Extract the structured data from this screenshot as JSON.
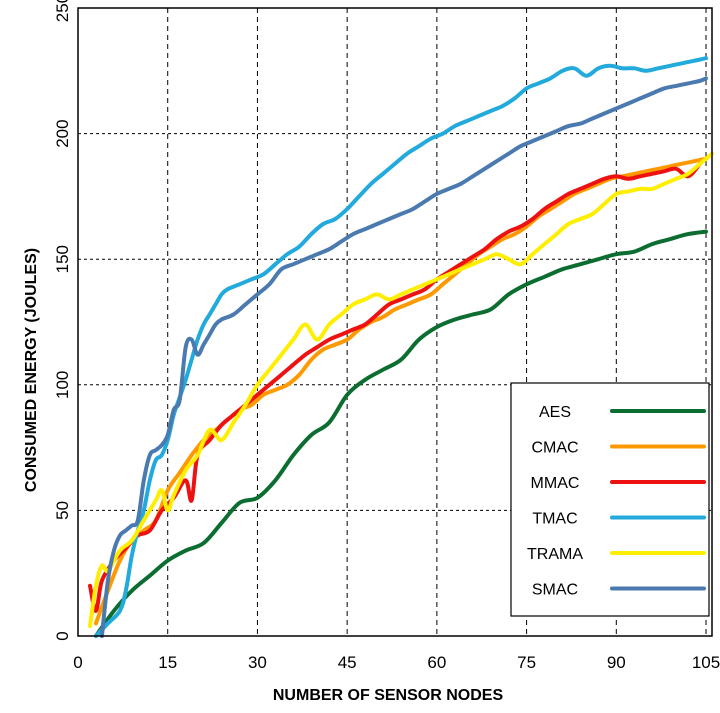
{
  "chart_data": {
    "type": "line",
    "title": "",
    "xlabel": "NUMBER OF SENSOR NODES",
    "ylabel": "CONSUMED ENERGY (JOULES)",
    "xlim": [
      0,
      106
    ],
    "ylim": [
      0,
      250
    ],
    "xticks": [
      0,
      15,
      30,
      45,
      60,
      75,
      90,
      105
    ],
    "yticks": [
      0,
      50,
      100,
      150,
      200,
      250
    ],
    "grid": true,
    "legend_position": "bottom-right",
    "series": [
      {
        "name": "AES",
        "color": "#0b6e30",
        "points": [
          [
            3,
            0
          ],
          [
            6,
            10
          ],
          [
            9,
            18
          ],
          [
            12,
            24
          ],
          [
            15,
            30
          ],
          [
            18,
            34
          ],
          [
            21,
            37
          ],
          [
            24,
            45
          ],
          [
            27,
            53
          ],
          [
            30,
            55
          ],
          [
            33,
            62
          ],
          [
            36,
            72
          ],
          [
            39,
            80
          ],
          [
            42,
            85
          ],
          [
            45,
            96
          ],
          [
            48,
            102
          ],
          [
            51,
            106
          ],
          [
            54,
            110
          ],
          [
            57,
            118
          ],
          [
            60,
            123
          ],
          [
            63,
            126
          ],
          [
            66,
            128
          ],
          [
            69,
            130
          ],
          [
            72,
            136
          ],
          [
            75,
            140
          ],
          [
            78,
            143
          ],
          [
            81,
            146
          ],
          [
            84,
            148
          ],
          [
            87,
            150
          ],
          [
            90,
            152
          ],
          [
            93,
            153
          ],
          [
            96,
            156
          ],
          [
            99,
            158
          ],
          [
            102,
            160
          ],
          [
            105,
            161
          ]
        ]
      },
      {
        "name": "CMAC",
        "color": "#ff9900",
        "points": [
          [
            3,
            5
          ],
          [
            5,
            18
          ],
          [
            7,
            30
          ],
          [
            9,
            38
          ],
          [
            11,
            42
          ],
          [
            13,
            46
          ],
          [
            15,
            58
          ],
          [
            17,
            65
          ],
          [
            19,
            72
          ],
          [
            21,
            78
          ],
          [
            23,
            82
          ],
          [
            25,
            86
          ],
          [
            27,
            90
          ],
          [
            29,
            92
          ],
          [
            31,
            96
          ],
          [
            33,
            98
          ],
          [
            35,
            100
          ],
          [
            37,
            104
          ],
          [
            39,
            110
          ],
          [
            41,
            114
          ],
          [
            43,
            116
          ],
          [
            45,
            118
          ],
          [
            47,
            122
          ],
          [
            49,
            125
          ],
          [
            51,
            127
          ],
          [
            53,
            130
          ],
          [
            55,
            132
          ],
          [
            57,
            134
          ],
          [
            59,
            136
          ],
          [
            61,
            140
          ],
          [
            63,
            144
          ],
          [
            65,
            148
          ],
          [
            67,
            152
          ],
          [
            69,
            155
          ],
          [
            71,
            158
          ],
          [
            73,
            160
          ],
          [
            75,
            163
          ],
          [
            77,
            167
          ],
          [
            79,
            170
          ],
          [
            81,
            173
          ],
          [
            83,
            176
          ],
          [
            85,
            178
          ],
          [
            87,
            180
          ],
          [
            89,
            182
          ],
          [
            91,
            183
          ],
          [
            93,
            184
          ],
          [
            95,
            185
          ],
          [
            97,
            186
          ],
          [
            99,
            187
          ],
          [
            101,
            188
          ],
          [
            103,
            189
          ],
          [
            105,
            190
          ]
        ]
      },
      {
        "name": "MMAC",
        "color": "#ee1111",
        "points": [
          [
            2,
            20
          ],
          [
            3,
            10
          ],
          [
            4,
            22
          ],
          [
            6,
            30
          ],
          [
            8,
            35
          ],
          [
            10,
            40
          ],
          [
            12,
            42
          ],
          [
            14,
            50
          ],
          [
            16,
            55
          ],
          [
            18,
            62
          ],
          [
            19,
            54
          ],
          [
            20,
            72
          ],
          [
            22,
            78
          ],
          [
            24,
            84
          ],
          [
            26,
            88
          ],
          [
            28,
            92
          ],
          [
            30,
            96
          ],
          [
            32,
            100
          ],
          [
            34,
            104
          ],
          [
            36,
            108
          ],
          [
            38,
            112
          ],
          [
            40,
            115
          ],
          [
            42,
            118
          ],
          [
            44,
            120
          ],
          [
            46,
            122
          ],
          [
            48,
            124
          ],
          [
            50,
            128
          ],
          [
            52,
            132
          ],
          [
            54,
            134
          ],
          [
            56,
            136
          ],
          [
            58,
            138
          ],
          [
            60,
            142
          ],
          [
            62,
            145
          ],
          [
            64,
            148
          ],
          [
            66,
            151
          ],
          [
            68,
            154
          ],
          [
            70,
            158
          ],
          [
            72,
            161
          ],
          [
            74,
            163
          ],
          [
            76,
            166
          ],
          [
            78,
            170
          ],
          [
            80,
            173
          ],
          [
            82,
            176
          ],
          [
            84,
            178
          ],
          [
            86,
            180
          ],
          [
            88,
            182
          ],
          [
            90,
            183
          ],
          [
            92,
            182
          ],
          [
            94,
            183
          ],
          [
            96,
            184
          ],
          [
            98,
            185
          ],
          [
            100,
            186
          ],
          [
            102,
            183
          ],
          [
            104,
            188
          ]
        ]
      },
      {
        "name": "TMAC",
        "color": "#22aadd",
        "points": [
          [
            3,
            0
          ],
          [
            5,
            5
          ],
          [
            7,
            10
          ],
          [
            8,
            18
          ],
          [
            9,
            32
          ],
          [
            10,
            42
          ],
          [
            11,
            50
          ],
          [
            12,
            62
          ],
          [
            13,
            70
          ],
          [
            14,
            72
          ],
          [
            15,
            78
          ],
          [
            16,
            88
          ],
          [
            17,
            95
          ],
          [
            18,
            102
          ],
          [
            19,
            110
          ],
          [
            20,
            118
          ],
          [
            21,
            124
          ],
          [
            22,
            128
          ],
          [
            23,
            132
          ],
          [
            24,
            136
          ],
          [
            25,
            138
          ],
          [
            27,
            140
          ],
          [
            29,
            142
          ],
          [
            31,
            144
          ],
          [
            33,
            148
          ],
          [
            35,
            152
          ],
          [
            37,
            155
          ],
          [
            39,
            160
          ],
          [
            41,
            164
          ],
          [
            43,
            166
          ],
          [
            45,
            170
          ],
          [
            47,
            175
          ],
          [
            49,
            180
          ],
          [
            51,
            184
          ],
          [
            53,
            188
          ],
          [
            55,
            192
          ],
          [
            57,
            195
          ],
          [
            59,
            198
          ],
          [
            61,
            200
          ],
          [
            63,
            203
          ],
          [
            65,
            205
          ],
          [
            67,
            207
          ],
          [
            69,
            209
          ],
          [
            71,
            211
          ],
          [
            73,
            214
          ],
          [
            75,
            218
          ],
          [
            77,
            220
          ],
          [
            79,
            222
          ],
          [
            81,
            225
          ],
          [
            83,
            226
          ],
          [
            85,
            223
          ],
          [
            87,
            226
          ],
          [
            89,
            227
          ],
          [
            91,
            226
          ],
          [
            93,
            226
          ],
          [
            95,
            225
          ],
          [
            97,
            226
          ],
          [
            99,
            227
          ],
          [
            101,
            228
          ],
          [
            103,
            229
          ],
          [
            105,
            230
          ]
        ]
      },
      {
        "name": "TRAMA",
        "color": "#ffee00",
        "points": [
          [
            2,
            4
          ],
          [
            3,
            20
          ],
          [
            4,
            28
          ],
          [
            5,
            26
          ],
          [
            7,
            34
          ],
          [
            9,
            38
          ],
          [
            11,
            46
          ],
          [
            13,
            54
          ],
          [
            14,
            58
          ],
          [
            15,
            50
          ],
          [
            16,
            56
          ],
          [
            18,
            66
          ],
          [
            20,
            72
          ],
          [
            22,
            82
          ],
          [
            24,
            78
          ],
          [
            26,
            85
          ],
          [
            28,
            92
          ],
          [
            30,
            100
          ],
          [
            32,
            106
          ],
          [
            34,
            112
          ],
          [
            36,
            118
          ],
          [
            38,
            124
          ],
          [
            40,
            118
          ],
          [
            42,
            124
          ],
          [
            44,
            128
          ],
          [
            46,
            132
          ],
          [
            48,
            134
          ],
          [
            50,
            136
          ],
          [
            52,
            134
          ],
          [
            54,
            136
          ],
          [
            56,
            138
          ],
          [
            58,
            140
          ],
          [
            60,
            142
          ],
          [
            62,
            144
          ],
          [
            64,
            146
          ],
          [
            66,
            148
          ],
          [
            68,
            150
          ],
          [
            70,
            152
          ],
          [
            72,
            150
          ],
          [
            74,
            148
          ],
          [
            76,
            152
          ],
          [
            78,
            156
          ],
          [
            80,
            160
          ],
          [
            82,
            164
          ],
          [
            84,
            166
          ],
          [
            86,
            168
          ],
          [
            88,
            172
          ],
          [
            90,
            176
          ],
          [
            92,
            177
          ],
          [
            94,
            178
          ],
          [
            96,
            178
          ],
          [
            98,
            180
          ],
          [
            100,
            182
          ],
          [
            102,
            184
          ],
          [
            104,
            188
          ],
          [
            106,
            192
          ]
        ]
      },
      {
        "name": "SMAC",
        "color": "#4a7ab0",
        "points": [
          [
            4,
            0
          ],
          [
            5,
            22
          ],
          [
            6,
            34
          ],
          [
            7,
            40
          ],
          [
            8,
            42
          ],
          [
            9,
            44
          ],
          [
            10,
            46
          ],
          [
            11,
            62
          ],
          [
            12,
            72
          ],
          [
            13,
            74
          ],
          [
            14,
            76
          ],
          [
            15,
            80
          ],
          [
            16,
            90
          ],
          [
            17,
            94
          ],
          [
            18,
            115
          ],
          [
            19,
            118
          ],
          [
            20,
            112
          ],
          [
            21,
            116
          ],
          [
            22,
            120
          ],
          [
            23,
            124
          ],
          [
            24,
            126
          ],
          [
            26,
            128
          ],
          [
            28,
            132
          ],
          [
            30,
            136
          ],
          [
            32,
            140
          ],
          [
            34,
            146
          ],
          [
            36,
            148
          ],
          [
            38,
            150
          ],
          [
            40,
            152
          ],
          [
            42,
            154
          ],
          [
            44,
            157
          ],
          [
            46,
            160
          ],
          [
            48,
            162
          ],
          [
            50,
            164
          ],
          [
            52,
            166
          ],
          [
            54,
            168
          ],
          [
            56,
            170
          ],
          [
            58,
            173
          ],
          [
            60,
            176
          ],
          [
            62,
            178
          ],
          [
            64,
            180
          ],
          [
            66,
            183
          ],
          [
            68,
            186
          ],
          [
            70,
            189
          ],
          [
            72,
            192
          ],
          [
            74,
            195
          ],
          [
            76,
            197
          ],
          [
            78,
            199
          ],
          [
            80,
            201
          ],
          [
            82,
            203
          ],
          [
            84,
            204
          ],
          [
            86,
            206
          ],
          [
            88,
            208
          ],
          [
            90,
            210
          ],
          [
            92,
            212
          ],
          [
            94,
            214
          ],
          [
            96,
            216
          ],
          [
            98,
            218
          ],
          [
            100,
            219
          ],
          [
            102,
            220
          ],
          [
            104,
            221
          ],
          [
            105,
            222
          ]
        ]
      }
    ]
  }
}
